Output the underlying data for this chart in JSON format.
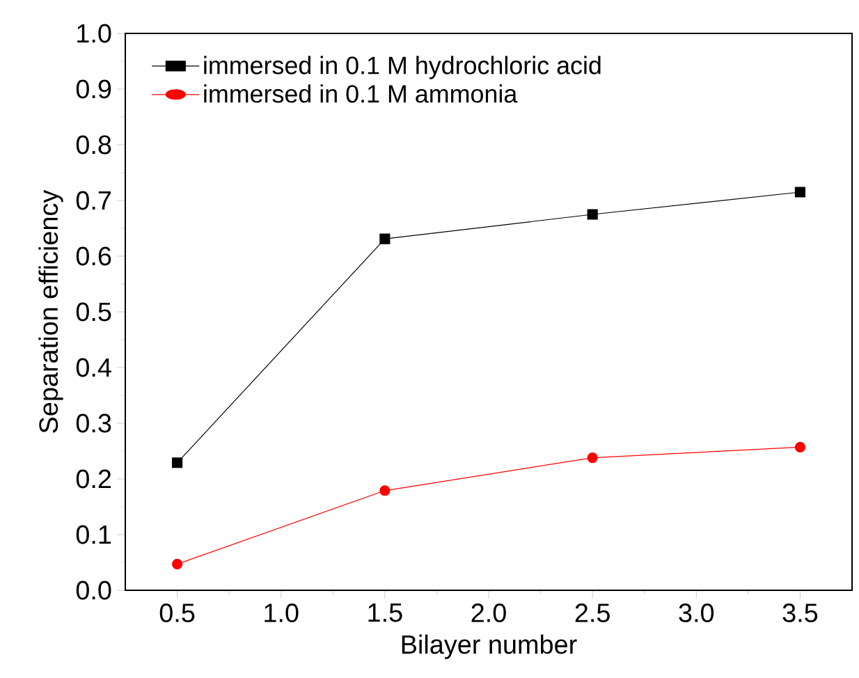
{
  "chart_data": {
    "type": "line",
    "xlabel": "Bilayer number",
    "ylabel": "Separation efficiency",
    "x": [
      0.5,
      1.5,
      2.5,
      3.5
    ],
    "series": [
      {
        "name": "immersed in 0.1 M hydrochloric acid",
        "color": "#000000",
        "marker": "square",
        "values": [
          0.229,
          0.631,
          0.675,
          0.715
        ]
      },
      {
        "name": "immersed in 0.1 M ammonia",
        "color": "#ff0000",
        "marker": "circle",
        "values": [
          0.047,
          0.179,
          0.238,
          0.257
        ]
      }
    ],
    "xlim": [
      0.25,
      3.75
    ],
    "ylim": [
      0.0,
      1.0
    ],
    "xticks": [
      0.5,
      {
        "value": 1,
        "label": "1.0"
      },
      1.5,
      {
        "value": 2,
        "label": "2.0"
      },
      2.5,
      {
        "value": 3,
        "label": "3.0"
      },
      3.5
    ],
    "yticks": [
      {
        "value": 0,
        "label": "0.0"
      },
      0.1,
      0.2,
      0.3,
      0.4,
      0.5,
      0.6,
      0.7,
      0.8,
      0.9,
      {
        "value": 1,
        "label": "1.0"
      }
    ],
    "legend": "top left",
    "grid": false,
    "line_style": "solid"
  }
}
